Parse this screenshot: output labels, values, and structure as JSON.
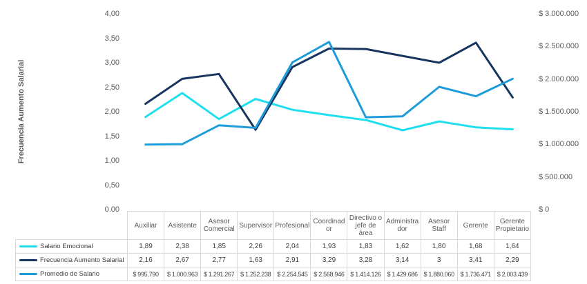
{
  "chart_data": {
    "type": "line",
    "categories": [
      "Auxiliar",
      "Asistente",
      "Asesor Comercial",
      "Supervisor",
      "Profesional",
      "Coordinador",
      "Directivo o jefe de área",
      "Administrador",
      "Asesor Staff",
      "Gerente",
      "Gerente Propietario"
    ],
    "series": [
      {
        "name": "Salario Emocional",
        "axis": "left",
        "color": "#1fdfee",
        "values": [
          1.89,
          2.38,
          1.85,
          2.26,
          2.04,
          1.93,
          1.83,
          1.62,
          1.8,
          1.68,
          1.64
        ],
        "display": [
          "1,89",
          "2,38",
          "1,85",
          "2,26",
          "2,04",
          "1,93",
          "1,83",
          "1,62",
          "1,80",
          "1,68",
          "1,64"
        ]
      },
      {
        "name": "Frecuencia Aumento Salarial",
        "axis": "left",
        "color": "#17355f",
        "values": [
          2.16,
          2.67,
          2.77,
          1.63,
          2.91,
          3.29,
          3.28,
          3.14,
          3,
          3.41,
          2.29
        ],
        "display": [
          "2,16",
          "2,67",
          "2,77",
          "1,63",
          "2,91",
          "3,29",
          "3,28",
          "3,14",
          "3",
          "3,41",
          "2,29"
        ]
      },
      {
        "name": "Promedio de Salario",
        "axis": "right",
        "color": "#1e9bd9",
        "values": [
          995790,
          1000963,
          1291267,
          1252238,
          2254545,
          2568946,
          1414126,
          1429686,
          1880060,
          1736471,
          2003439
        ],
        "display": [
          "$ 995.790",
          "$ 1.000.963",
          "$ 1.291.267",
          "$ 1.252.238",
          "$ 2.254.545",
          "$ 2.568.946",
          "$ 1.414.126",
          "$ 1.429.686",
          "$ 1.880.060",
          "$ 1.736.471",
          "$ 2.003.439"
        ]
      }
    ],
    "left_axis": {
      "title": "Frecuencia Aumento Salarial",
      "min": 0,
      "max": 4,
      "step": 0.5,
      "tick_labels": [
        "0,00",
        "0,50",
        "1,00",
        "1,50",
        "2,00",
        "2,50",
        "3,00",
        "3,50",
        "4,00"
      ]
    },
    "right_axis": {
      "min": 0,
      "max": 3000000,
      "step": 500000,
      "tick_labels": [
        "$ 0",
        "$ 500.000",
        "$ 1.000.000",
        "$ 1.500.000",
        "$ 2.000.000",
        "$ 2.500.000",
        "$ 3.000.000"
      ]
    },
    "grid": false,
    "legend_position": "table-left"
  }
}
